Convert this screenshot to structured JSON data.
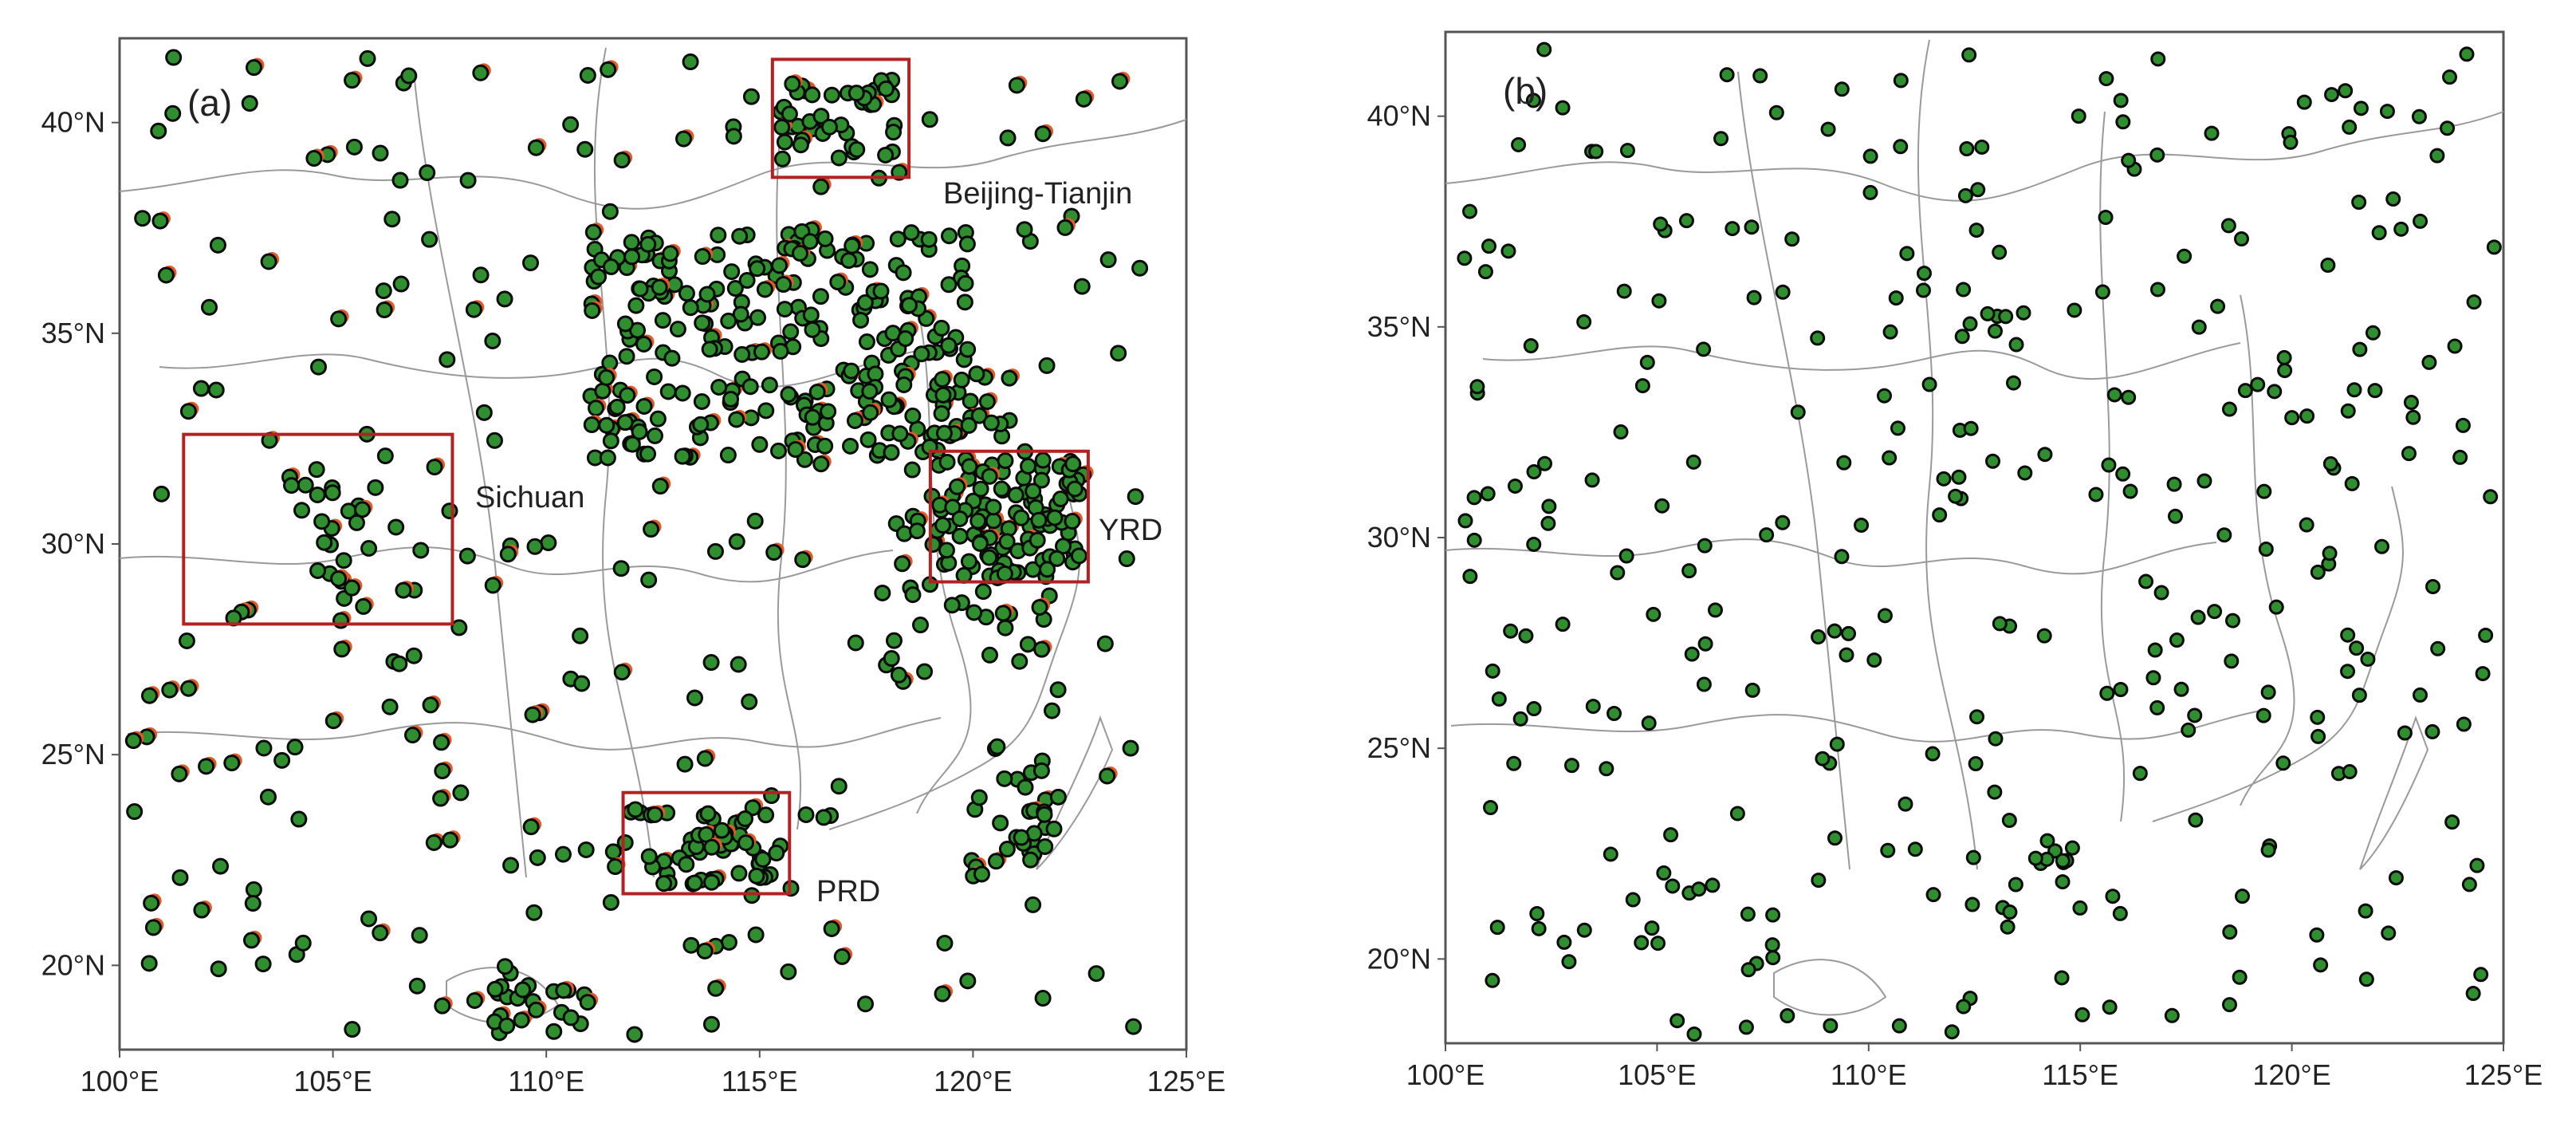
{
  "panels": [
    {
      "id": "a",
      "label": "(a)",
      "lon_ticks": [
        "100°E",
        "105°E",
        "110°E",
        "115°E",
        "120°E",
        "125°E"
      ],
      "lat_ticks": [
        "20°N",
        "25°N",
        "30°N",
        "35°N",
        "40°N"
      ],
      "lon_range": [
        100,
        125
      ],
      "lat_range": [
        18,
        42
      ],
      "highlight_regions": [
        {
          "name": "Beijing-Tianjin",
          "lon": [
            115.3,
            118.5
          ],
          "lat": [
            38.7,
            41.5
          ]
        },
        {
          "name": "Sichuan",
          "lon": [
            101.5,
            107.8
          ],
          "lat": [
            28.1,
            32.6
          ]
        },
        {
          "name": "YRD",
          "lon": [
            119.0,
            122.7
          ],
          "lat": [
            29.1,
            32.2
          ]
        },
        {
          "name": "PRD",
          "lon": [
            111.8,
            115.7
          ],
          "lat": [
            21.7,
            24.1
          ]
        }
      ],
      "marker_colors": {
        "fill": "#2f8f2f",
        "edge": "#0a0a0a",
        "secondary": "#e05a2a"
      }
    },
    {
      "id": "b",
      "label": "(b)",
      "lon_ticks": [
        "100°E",
        "105°E",
        "110°E",
        "115°E",
        "120°E",
        "125°E"
      ],
      "lat_ticks": [
        "20°N",
        "25°N",
        "30°N",
        "35°N",
        "40°N"
      ],
      "lon_range": [
        100,
        125
      ],
      "lat_range": [
        18,
        42
      ],
      "marker_colors": {
        "fill": "#2f8f2f",
        "edge": "#0a0a0a"
      }
    }
  ],
  "colors": {
    "frame": "#555555",
    "boundary": "#9a9a9a",
    "box": "#b22222"
  }
}
